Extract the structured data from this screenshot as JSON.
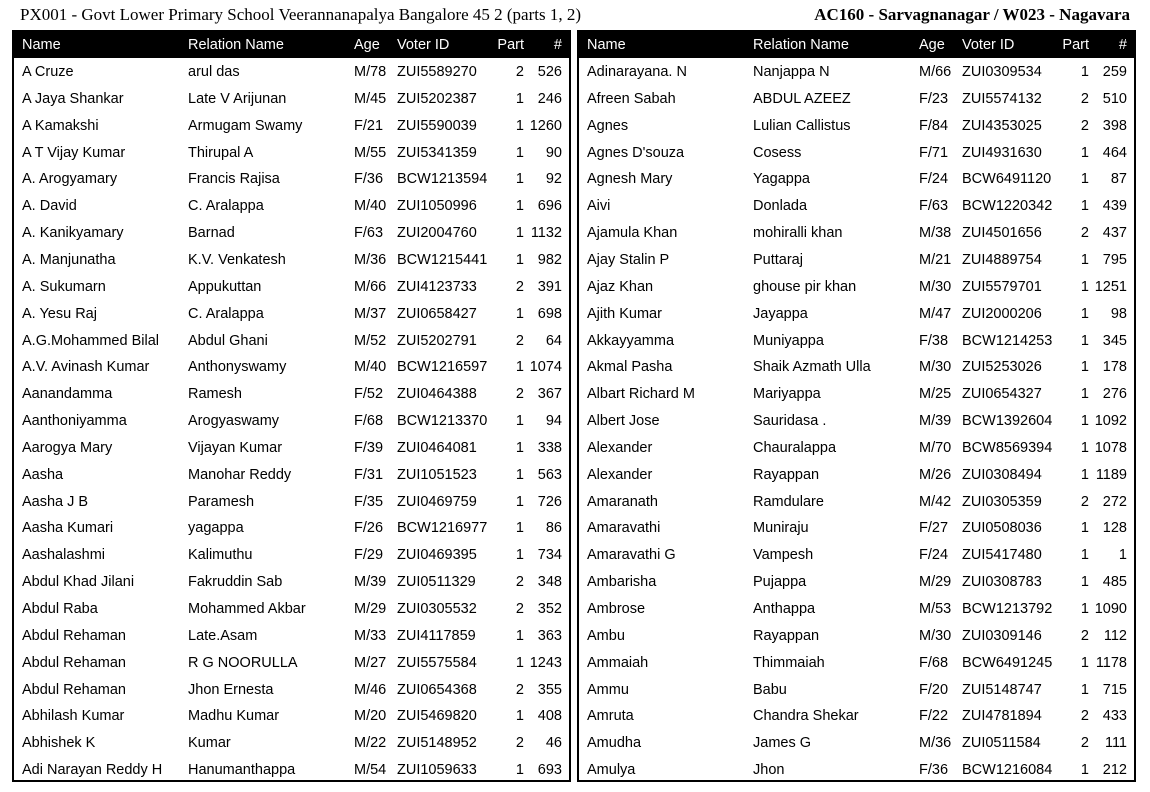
{
  "header": {
    "left": "PX001 - Govt Lower Primary School Veerannanapalya Bangalore 45 2 (parts 1, 2)",
    "right": "AC160 - Sarvagnanagar / W023 - Nagavara"
  },
  "columns": {
    "name": "Name",
    "relation": "Relation Name",
    "age": "Age",
    "voter_id": "Voter ID",
    "part": "Part",
    "num": "#"
  },
  "left_rows": [
    {
      "name": "A Cruze",
      "relation": "arul das",
      "age": "M/78",
      "voter_id": "ZUI5589270",
      "part": "2",
      "num": "526"
    },
    {
      "name": "A Jaya Shankar",
      "relation": "Late V Arijunan",
      "age": "M/45",
      "voter_id": "ZUI5202387",
      "part": "1",
      "num": "246"
    },
    {
      "name": "A Kamakshi",
      "relation": "Armugam Swamy",
      "age": "F/21",
      "voter_id": "ZUI5590039",
      "part": "1",
      "num": "1260"
    },
    {
      "name": "A T Vijay Kumar",
      "relation": "Thirupal A",
      "age": "M/55",
      "voter_id": "ZUI5341359",
      "part": "1",
      "num": "90"
    },
    {
      "name": "A. Arogyamary",
      "relation": "Francis Rajisa",
      "age": "F/36",
      "voter_id": "BCW1213594",
      "part": "1",
      "num": "92"
    },
    {
      "name": "A. David",
      "relation": "C. Aralappa",
      "age": "M/40",
      "voter_id": "ZUI1050996",
      "part": "1",
      "num": "696"
    },
    {
      "name": "A. Kanikyamary",
      "relation": "Barnad",
      "age": "F/63",
      "voter_id": "ZUI2004760",
      "part": "1",
      "num": "1132"
    },
    {
      "name": "A. Manjunatha",
      "relation": "K.V. Venkatesh",
      "age": "M/36",
      "voter_id": "BCW1215441",
      "part": "1",
      "num": "982"
    },
    {
      "name": "A. Sukumarn",
      "relation": "Appukuttan",
      "age": "M/66",
      "voter_id": "ZUI4123733",
      "part": "2",
      "num": "391"
    },
    {
      "name": "A. Yesu Raj",
      "relation": "C. Aralappa",
      "age": "M/37",
      "voter_id": "ZUI0658427",
      "part": "1",
      "num": "698"
    },
    {
      "name": "A.G.Mohammed Bilal",
      "relation": "Abdul Ghani",
      "age": "M/52",
      "voter_id": "ZUI5202791",
      "part": "2",
      "num": "64"
    },
    {
      "name": "A.V. Avinash Kumar",
      "relation": "Anthonyswamy",
      "age": "M/40",
      "voter_id": "BCW1216597",
      "part": "1",
      "num": "1074"
    },
    {
      "name": "Aanandamma",
      "relation": "Ramesh",
      "age": "F/52",
      "voter_id": "ZUI0464388",
      "part": "2",
      "num": "367"
    },
    {
      "name": "Aanthoniyamma",
      "relation": "Arogyaswamy",
      "age": "F/68",
      "voter_id": "BCW1213370",
      "part": "1",
      "num": "94"
    },
    {
      "name": "Aarogya Mary",
      "relation": "Vijayan Kumar",
      "age": "F/39",
      "voter_id": "ZUI0464081",
      "part": "1",
      "num": "338"
    },
    {
      "name": "Aasha",
      "relation": "Manohar Reddy",
      "age": "F/31",
      "voter_id": "ZUI1051523",
      "part": "1",
      "num": "563"
    },
    {
      "name": "Aasha J B",
      "relation": "Paramesh",
      "age": "F/35",
      "voter_id": "ZUI0469759",
      "part": "1",
      "num": "726"
    },
    {
      "name": "Aasha Kumari",
      "relation": "yagappa",
      "age": "F/26",
      "voter_id": "BCW1216977",
      "part": "1",
      "num": "86"
    },
    {
      "name": "Aashalashmi",
      "relation": "Kalimuthu",
      "age": "F/29",
      "voter_id": "ZUI0469395",
      "part": "1",
      "num": "734"
    },
    {
      "name": "Abdul Khad Jilani",
      "relation": "Fakruddin Sab",
      "age": "M/39",
      "voter_id": "ZUI0511329",
      "part": "2",
      "num": "348"
    },
    {
      "name": "Abdul Raba",
      "relation": "Mohammed Akbar",
      "age": "M/29",
      "voter_id": "ZUI0305532",
      "part": "2",
      "num": "352"
    },
    {
      "name": "Abdul Rehaman",
      "relation": "Late.Asam",
      "age": "M/33",
      "voter_id": "ZUI4117859",
      "part": "1",
      "num": "363"
    },
    {
      "name": "Abdul Rehaman",
      "relation": "R G NOORULLA",
      "age": "M/27",
      "voter_id": "ZUI5575584",
      "part": "1",
      "num": "1243"
    },
    {
      "name": "Abdul Rehaman",
      "relation": "Jhon Ernesta",
      "age": "M/46",
      "voter_id": "ZUI0654368",
      "part": "2",
      "num": "355"
    },
    {
      "name": "Abhilash Kumar",
      "relation": "Madhu Kumar",
      "age": "M/20",
      "voter_id": "ZUI5469820",
      "part": "1",
      "num": "408"
    },
    {
      "name": "Abhishek K",
      "relation": "Kumar",
      "age": "M/22",
      "voter_id": "ZUI5148952",
      "part": "2",
      "num": "46"
    },
    {
      "name": "Adi Narayan Reddy H",
      "relation": "Hanumanthappa",
      "age": "M/54",
      "voter_id": "ZUI1059633",
      "part": "1",
      "num": "693"
    }
  ],
  "right_rows": [
    {
      "name": "Adinarayana. N",
      "relation": "Nanjappa N",
      "age": "M/66",
      "voter_id": "ZUI0309534",
      "part": "1",
      "num": "259"
    },
    {
      "name": "Afreen Sabah",
      "relation": "ABDUL AZEEZ",
      "age": "F/23",
      "voter_id": "ZUI5574132",
      "part": "2",
      "num": "510"
    },
    {
      "name": "Agnes",
      "relation": "Lulian Callistus",
      "age": "F/84",
      "voter_id": "ZUI4353025",
      "part": "2",
      "num": "398"
    },
    {
      "name": "Agnes D'souza",
      "relation": "Cosess",
      "age": "F/71",
      "voter_id": "ZUI4931630",
      "part": "1",
      "num": "464"
    },
    {
      "name": "Agnesh Mary",
      "relation": "Yagappa",
      "age": "F/24",
      "voter_id": "BCW6491120",
      "part": "1",
      "num": "87"
    },
    {
      "name": "Aivi",
      "relation": "Donlada",
      "age": "F/63",
      "voter_id": "BCW1220342",
      "part": "1",
      "num": "439"
    },
    {
      "name": "Ajamula Khan",
      "relation": "mohiralli khan",
      "age": "M/38",
      "voter_id": "ZUI4501656",
      "part": "2",
      "num": "437"
    },
    {
      "name": "Ajay Stalin P",
      "relation": "Puttaraj",
      "age": "M/21",
      "voter_id": "ZUI4889754",
      "part": "1",
      "num": "795"
    },
    {
      "name": "Ajaz Khan",
      "relation": "ghouse pir khan",
      "age": "M/30",
      "voter_id": "ZUI5579701",
      "part": "1",
      "num": "1251"
    },
    {
      "name": "Ajith Kumar",
      "relation": "Jayappa",
      "age": "M/47",
      "voter_id": "ZUI2000206",
      "part": "1",
      "num": "98"
    },
    {
      "name": "Akkayyamma",
      "relation": "Muniyappa",
      "age": "F/38",
      "voter_id": "BCW1214253",
      "part": "1",
      "num": "345"
    },
    {
      "name": "Akmal Pasha",
      "relation": "Shaik Azmath Ulla",
      "age": "M/30",
      "voter_id": "ZUI5253026",
      "part": "1",
      "num": "178"
    },
    {
      "name": "Albart Richard M",
      "relation": "Mariyappa",
      "age": "M/25",
      "voter_id": "ZUI0654327",
      "part": "1",
      "num": "276"
    },
    {
      "name": "Albert Jose",
      "relation": "Sauridasa .",
      "age": "M/39",
      "voter_id": "BCW1392604",
      "part": "1",
      "num": "1092"
    },
    {
      "name": "Alexander",
      "relation": "Chauralappa",
      "age": "M/70",
      "voter_id": "BCW8569394",
      "part": "1",
      "num": "1078"
    },
    {
      "name": "Alexander",
      "relation": "Rayappan",
      "age": "M/26",
      "voter_id": "ZUI0308494",
      "part": "1",
      "num": "1189"
    },
    {
      "name": "Amaranath",
      "relation": "Ramdulare",
      "age": "M/42",
      "voter_id": "ZUI0305359",
      "part": "2",
      "num": "272"
    },
    {
      "name": "Amaravathi",
      "relation": "Muniraju",
      "age": "F/27",
      "voter_id": "ZUI0508036",
      "part": "1",
      "num": "128"
    },
    {
      "name": "Amaravathi G",
      "relation": "Vampesh",
      "age": "F/24",
      "voter_id": "ZUI5417480",
      "part": "1",
      "num": "1"
    },
    {
      "name": "Ambarisha",
      "relation": "Pujappa",
      "age": "M/29",
      "voter_id": "ZUI0308783",
      "part": "1",
      "num": "485"
    },
    {
      "name": "Ambrose",
      "relation": "Anthappa",
      "age": "M/53",
      "voter_id": "BCW1213792",
      "part": "1",
      "num": "1090"
    },
    {
      "name": "Ambu",
      "relation": "Rayappan",
      "age": "M/30",
      "voter_id": "ZUI0309146",
      "part": "2",
      "num": "112"
    },
    {
      "name": "Ammaiah",
      "relation": "Thimmaiah",
      "age": "F/68",
      "voter_id": "BCW6491245",
      "part": "1",
      "num": "1178"
    },
    {
      "name": "Ammu",
      "relation": "Babu",
      "age": "F/20",
      "voter_id": "ZUI5148747",
      "part": "1",
      "num": "715"
    },
    {
      "name": "Amruta",
      "relation": "Chandra Shekar",
      "age": "F/22",
      "voter_id": "ZUI4781894",
      "part": "2",
      "num": "433"
    },
    {
      "name": "Amudha",
      "relation": "James G",
      "age": "M/36",
      "voter_id": "ZUI0511584",
      "part": "2",
      "num": "111"
    },
    {
      "name": "Amulya",
      "relation": "Jhon",
      "age": "F/36",
      "voter_id": "BCW1216084",
      "part": "1",
      "num": "212"
    }
  ]
}
